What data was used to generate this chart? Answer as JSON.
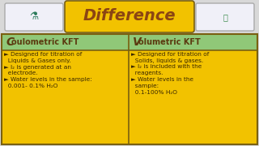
{
  "title": "Difference",
  "title_bg": "#F2C200",
  "title_color": "#8B4513",
  "header_bg": "#90C878",
  "header_color": "#5B3A10",
  "cell_bg": "#F2C200",
  "cell_color": "#3B2800",
  "col1_header": "Coulometric KFT",
  "col2_header": "Volumetric KFT",
  "col1_header_prefix": "C",
  "col2_header_prefix": "V",
  "col1_bullet1a": "► Designed for titration of",
  "col1_bullet1b": "  Liquids & Gases only.",
  "col1_bullet2a": "► I₂ is generated at an",
  "col1_bullet2b": "  electrode.",
  "col1_bullet3a": "► Water levels in the sample:",
  "col1_bullet3b": "  0.001- 0.1% H₂O",
  "col2_bullet1a": "► Designed for titration of",
  "col2_bullet1b": "  Solids, liquids & gases.",
  "col2_bullet2a": "► I₂ is included with the",
  "col2_bullet2b": "  reagents.",
  "col2_bullet3a": "► Water levels in the",
  "col2_bullet3b": "  sample:",
  "col2_bullet3c": "  0.1-100% H₂O",
  "border_color": "#7A6010",
  "outer_bg": "#D8D8D8",
  "img_border": "#AAAAAA",
  "img_bg": "#F0F0F8"
}
